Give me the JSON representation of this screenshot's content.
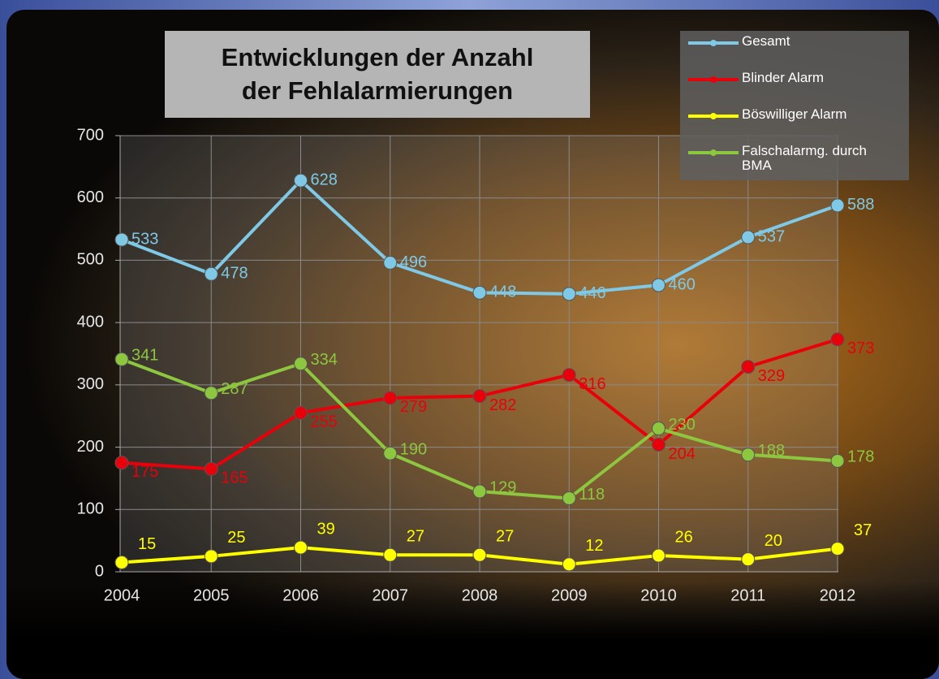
{
  "chart_data": {
    "type": "line",
    "title": "Entwicklungen der Anzahl der Fehlalarmierungen",
    "categories": [
      "2004",
      "2005",
      "2006",
      "2007",
      "2008",
      "2009",
      "2010",
      "2011",
      "2012"
    ],
    "series": [
      {
        "name": "Gesamt",
        "color": "#7fc9e6",
        "values": [
          533,
          478,
          628,
          496,
          448,
          446,
          460,
          537,
          588
        ]
      },
      {
        "name": "Blinder Alarm",
        "color": "#e8000b",
        "values": [
          175,
          165,
          255,
          279,
          282,
          316,
          204,
          329,
          373
        ]
      },
      {
        "name": "Böswilliger Alarm",
        "color": "#ffff00",
        "values": [
          15,
          25,
          39,
          27,
          27,
          12,
          26,
          20,
          37
        ]
      },
      {
        "name": "Falschalarmg. durch BMA",
        "color": "#8dc63f",
        "values": [
          341,
          287,
          334,
          190,
          129,
          118,
          230,
          188,
          178
        ]
      }
    ],
    "ylim": [
      0,
      700
    ],
    "yticks": [
      0,
      100,
      200,
      300,
      400,
      500,
      600,
      700
    ],
    "grid": true,
    "legend": "top-right"
  }
}
